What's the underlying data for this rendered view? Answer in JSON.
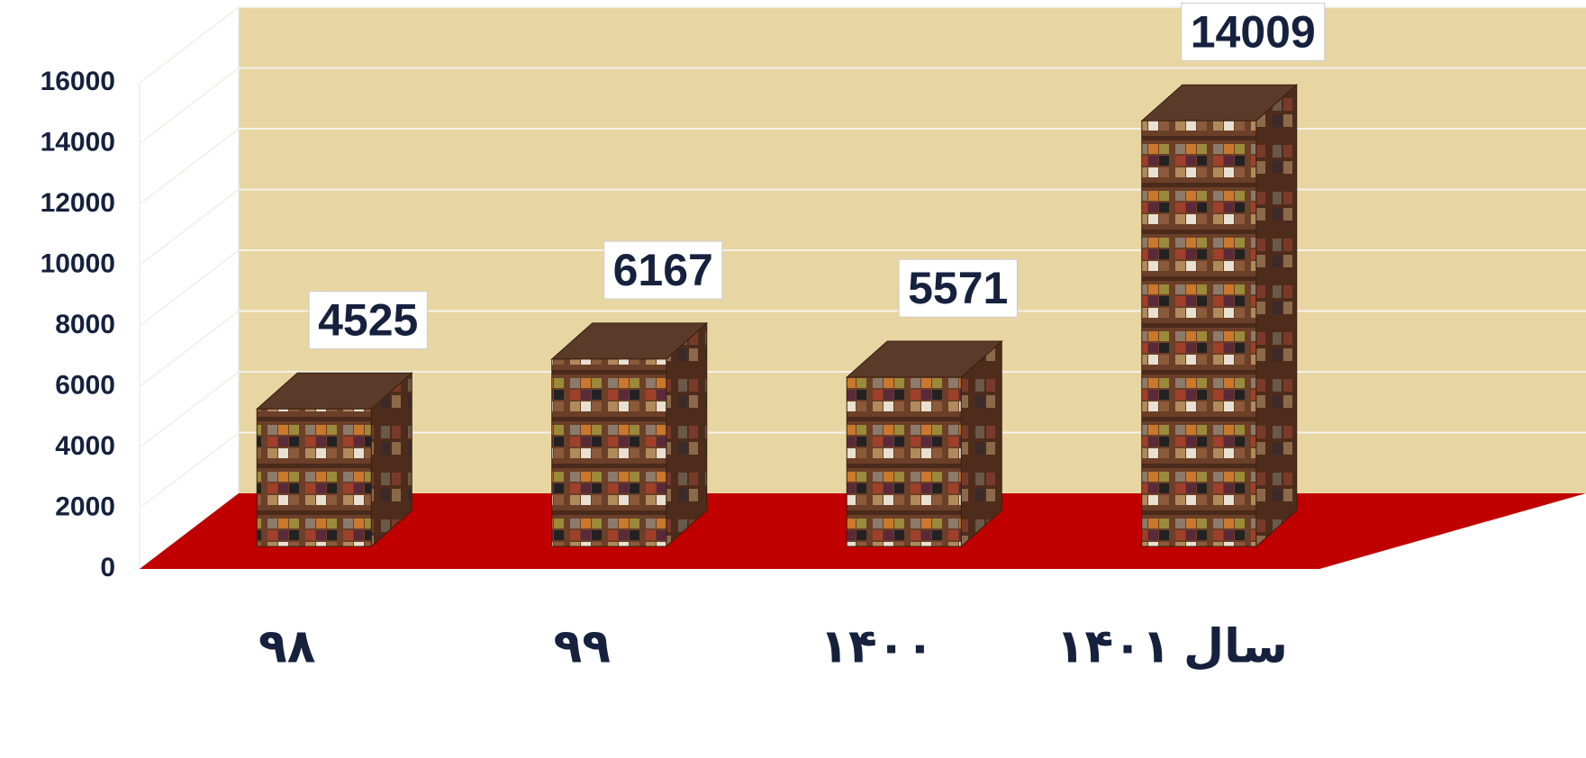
{
  "chart_data": {
    "type": "bar3d",
    "categories": [
      "۹۸",
      "۹۹",
      "۱۴۰۰",
      "سال ۱۴۰۱"
    ],
    "values": [
      4525,
      6167,
      5571,
      14009
    ],
    "ylim": [
      0,
      16000
    ],
    "yticks": [
      0,
      2000,
      4000,
      6000,
      8000,
      10000,
      12000,
      14000,
      16000
    ],
    "grid": true,
    "wall_color": "#e8d6a2",
    "floor_color": "#c00000",
    "color": "#7a4a2e"
  }
}
